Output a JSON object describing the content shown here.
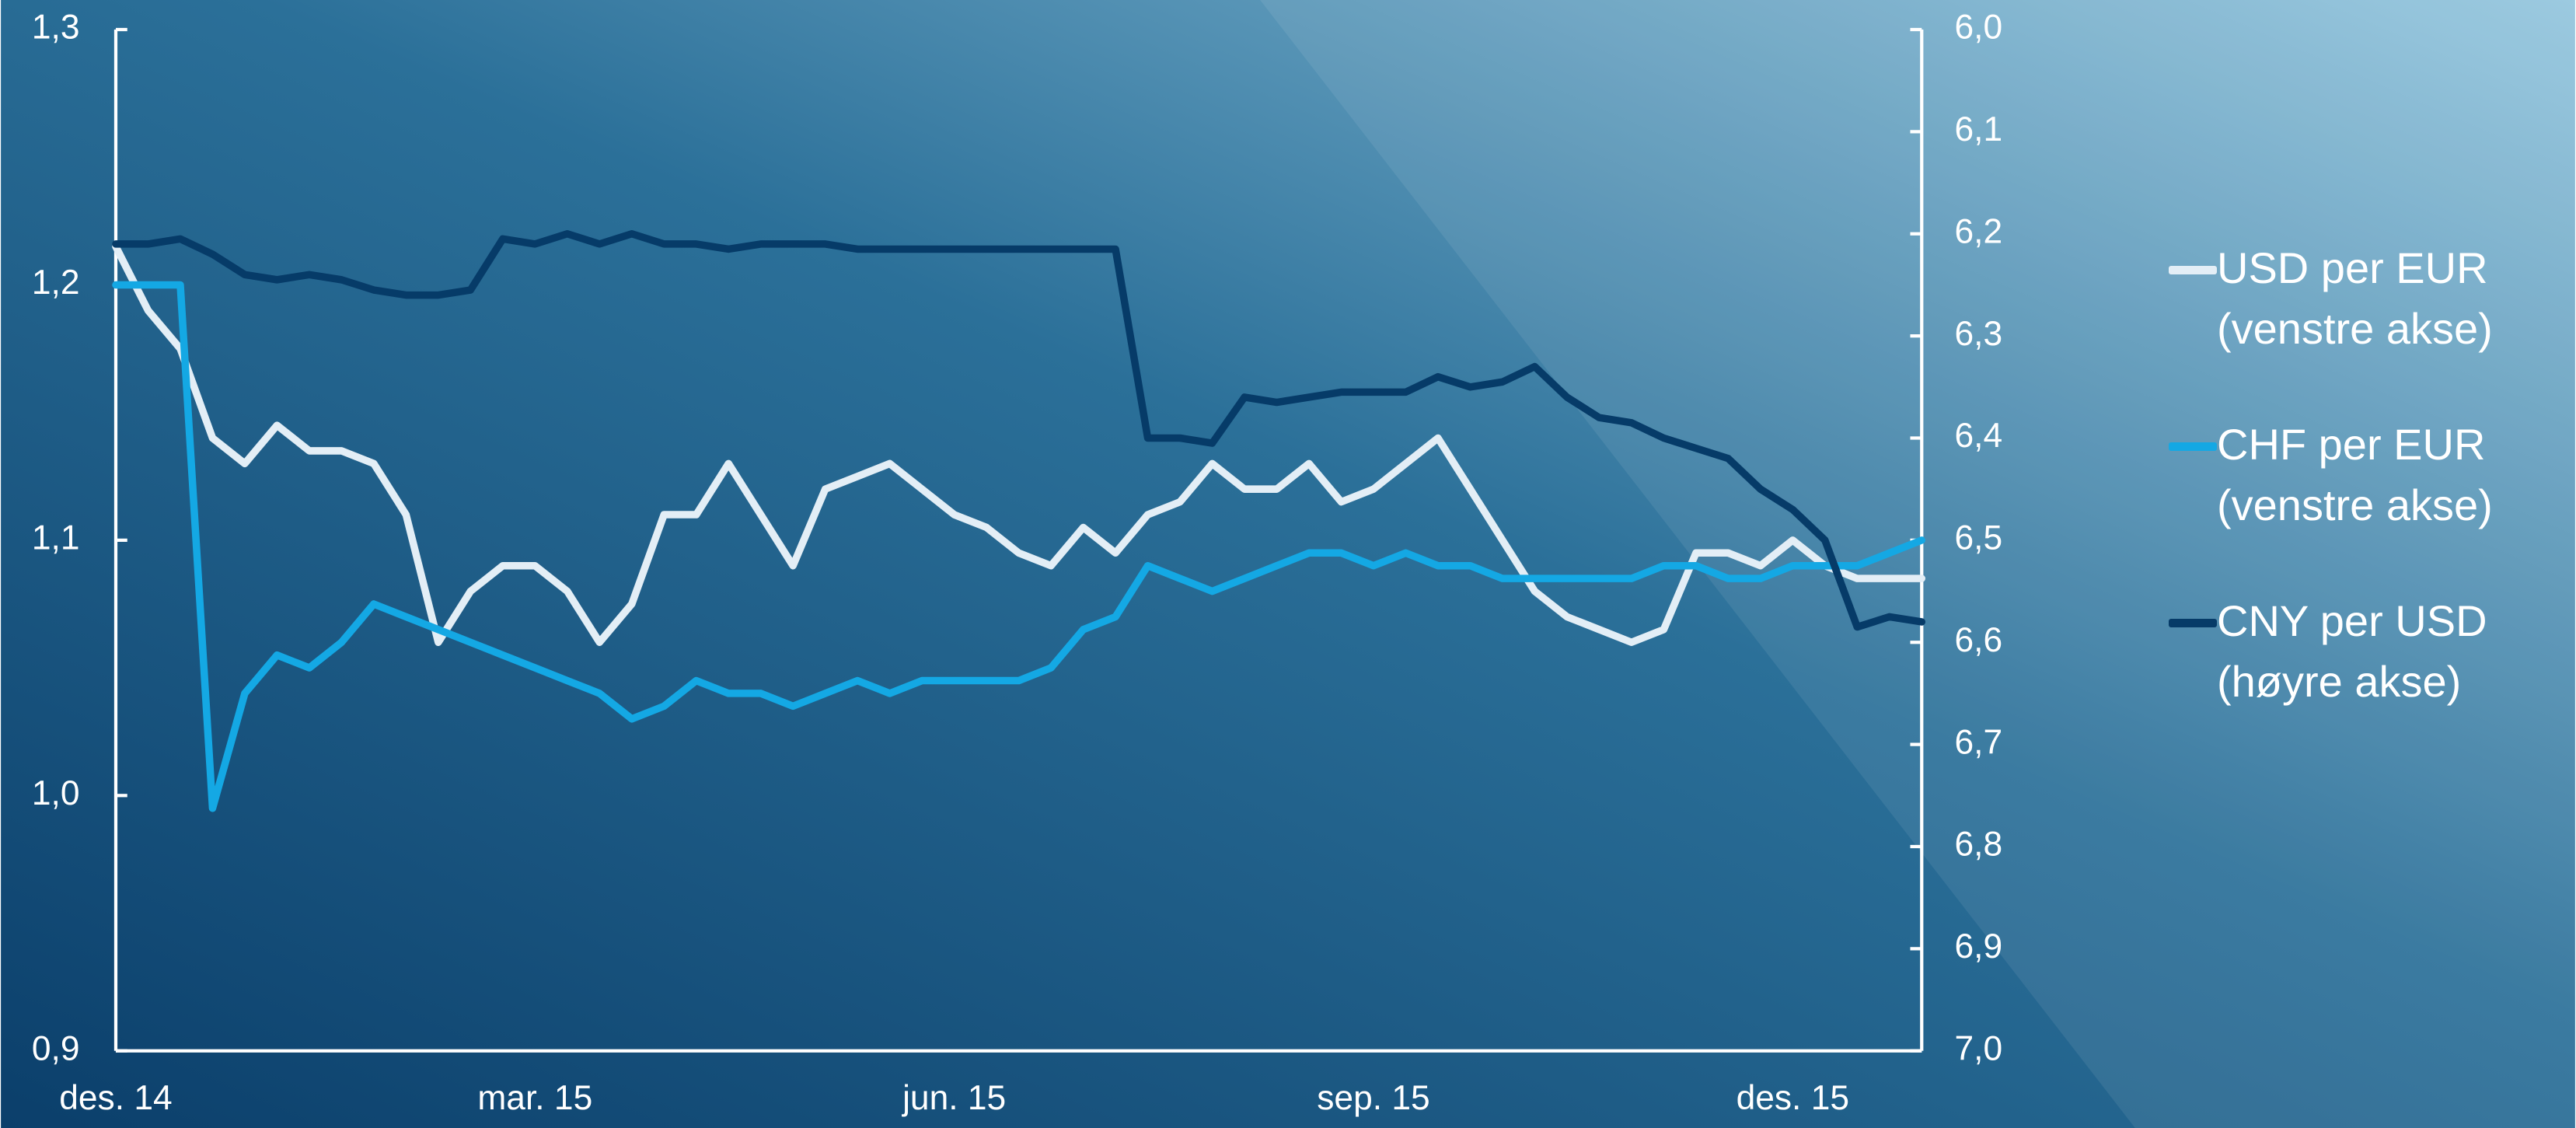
{
  "chart_data": {
    "type": "line",
    "categories": [
      "des. 14",
      null,
      null,
      null,
      null,
      null,
      null,
      null,
      null,
      null,
      null,
      null,
      null,
      "mar. 15",
      null,
      null,
      null,
      null,
      null,
      null,
      null,
      null,
      null,
      null,
      null,
      null,
      "jun. 15",
      null,
      null,
      null,
      null,
      null,
      null,
      null,
      null,
      null,
      null,
      null,
      null,
      "sep. 15",
      null,
      null,
      null,
      null,
      null,
      null,
      null,
      null,
      null,
      null,
      null,
      null,
      "des. 15",
      null,
      null,
      null,
      null
    ],
    "ylim": [
      0.9,
      1.3
    ],
    "yticks": [
      {
        "value": 0.9,
        "label": "0,9"
      },
      {
        "value": 1.0,
        "label": "1,0"
      },
      {
        "value": 1.1,
        "label": "1,1"
      },
      {
        "value": 1.2,
        "label": "1,2"
      },
      {
        "value": 1.3,
        "label": "1,3"
      }
    ],
    "y2lim": [
      7.0,
      6.0
    ],
    "y2ticks": [
      {
        "value": 6.0,
        "label": "6,0"
      },
      {
        "value": 6.1,
        "label": "6,1"
      },
      {
        "value": 6.2,
        "label": "6,2"
      },
      {
        "value": 6.3,
        "label": "6,3"
      },
      {
        "value": 6.4,
        "label": "6,4"
      },
      {
        "value": 6.5,
        "label": "6,5"
      },
      {
        "value": 6.6,
        "label": "6,6"
      },
      {
        "value": 6.7,
        "label": "6,7"
      },
      {
        "value": 6.8,
        "label": "6,8"
      },
      {
        "value": 6.9,
        "label": "6,9"
      },
      {
        "value": 7.0,
        "label": "7,0"
      }
    ],
    "legend": "right",
    "grid": false,
    "series": [
      {
        "name": "USD per EUR (venstre akse)",
        "color": "#e3eef6",
        "axis": "y",
        "values": [
          1.215,
          1.19,
          1.175,
          1.14,
          1.13,
          1.145,
          1.135,
          1.135,
          1.13,
          1.11,
          1.06,
          1.08,
          1.09,
          1.09,
          1.08,
          1.06,
          1.075,
          1.11,
          1.11,
          1.13,
          1.11,
          1.09,
          1.12,
          1.125,
          1.13,
          1.12,
          1.11,
          1.105,
          1.095,
          1.09,
          1.105,
          1.095,
          1.11,
          1.115,
          1.13,
          1.12,
          1.12,
          1.13,
          1.115,
          1.12,
          1.13,
          1.14,
          1.12,
          1.1,
          1.08,
          1.07,
          1.065,
          1.06,
          1.065,
          1.095,
          1.095,
          1.09,
          1.1,
          1.09,
          1.085,
          1.085,
          1.085
        ]
      },
      {
        "name": "CHF per EUR (venstre akse)",
        "color": "#14a8e4",
        "axis": "y",
        "values": [
          1.2,
          1.2,
          1.2,
          0.995,
          1.04,
          1.055,
          1.05,
          1.06,
          1.075,
          1.07,
          1.065,
          1.06,
          1.055,
          1.05,
          1.045,
          1.04,
          1.03,
          1.035,
          1.045,
          1.04,
          1.04,
          1.035,
          1.04,
          1.045,
          1.04,
          1.045,
          1.045,
          1.045,
          1.045,
          1.05,
          1.065,
          1.07,
          1.09,
          1.085,
          1.08,
          1.085,
          1.09,
          1.095,
          1.095,
          1.09,
          1.095,
          1.09,
          1.09,
          1.085,
          1.085,
          1.085,
          1.085,
          1.085,
          1.09,
          1.09,
          1.085,
          1.085,
          1.09,
          1.09,
          1.09,
          1.095,
          1.1
        ]
      },
      {
        "name": "CNY per USD (høyre akse)",
        "color": "#063b68",
        "axis": "y2",
        "values": [
          6.21,
          6.21,
          6.205,
          6.22,
          6.24,
          6.245,
          6.24,
          6.245,
          6.255,
          6.26,
          6.26,
          6.255,
          6.205,
          6.21,
          6.2,
          6.21,
          6.2,
          6.21,
          6.21,
          6.215,
          6.21,
          6.21,
          6.21,
          6.215,
          6.215,
          6.215,
          6.215,
          6.215,
          6.215,
          6.215,
          6.215,
          6.215,
          6.4,
          6.4,
          6.405,
          6.36,
          6.365,
          6.36,
          6.355,
          6.355,
          6.355,
          6.34,
          6.35,
          6.345,
          6.33,
          6.36,
          6.38,
          6.385,
          6.4,
          6.41,
          6.42,
          6.45,
          6.47,
          6.5,
          6.585,
          6.575,
          6.58
        ]
      }
    ]
  }
}
